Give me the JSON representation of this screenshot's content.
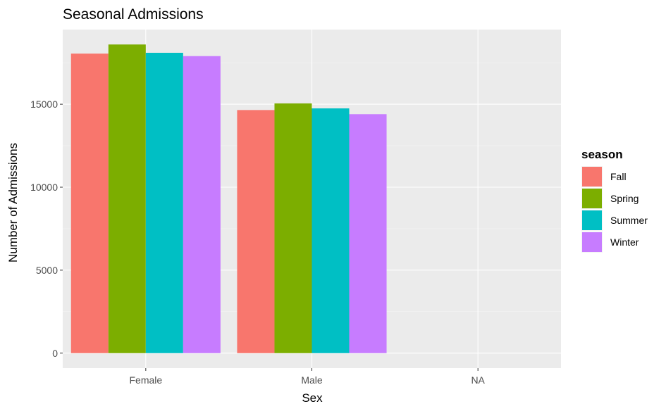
{
  "chart_data": {
    "type": "bar",
    "title": "Seasonal Admissions",
    "xlabel": "Sex",
    "ylabel": "Number of Admissions",
    "categories": [
      "Female",
      "Male",
      "NA"
    ],
    "series": [
      {
        "name": "Fall",
        "color": "#F8766D",
        "values": [
          18050,
          14650,
          null
        ]
      },
      {
        "name": "Spring",
        "color": "#7CAE00",
        "values": [
          18600,
          15050,
          null
        ]
      },
      {
        "name": "Summer",
        "color": "#00BFC4",
        "values": [
          18100,
          14750,
          null
        ]
      },
      {
        "name": "Winter",
        "color": "#C77CFF",
        "values": [
          17900,
          14400,
          null
        ]
      }
    ],
    "yticks": [
      0,
      5000,
      10000,
      15000
    ],
    "ylim": [
      -900,
      19500
    ],
    "grid": true,
    "legend": {
      "title": "season",
      "position": "right"
    },
    "colors": {
      "panel_background": "#EBEBEB",
      "grid_major": "#FFFFFF",
      "grid_minor": "#F5F5F5"
    }
  }
}
